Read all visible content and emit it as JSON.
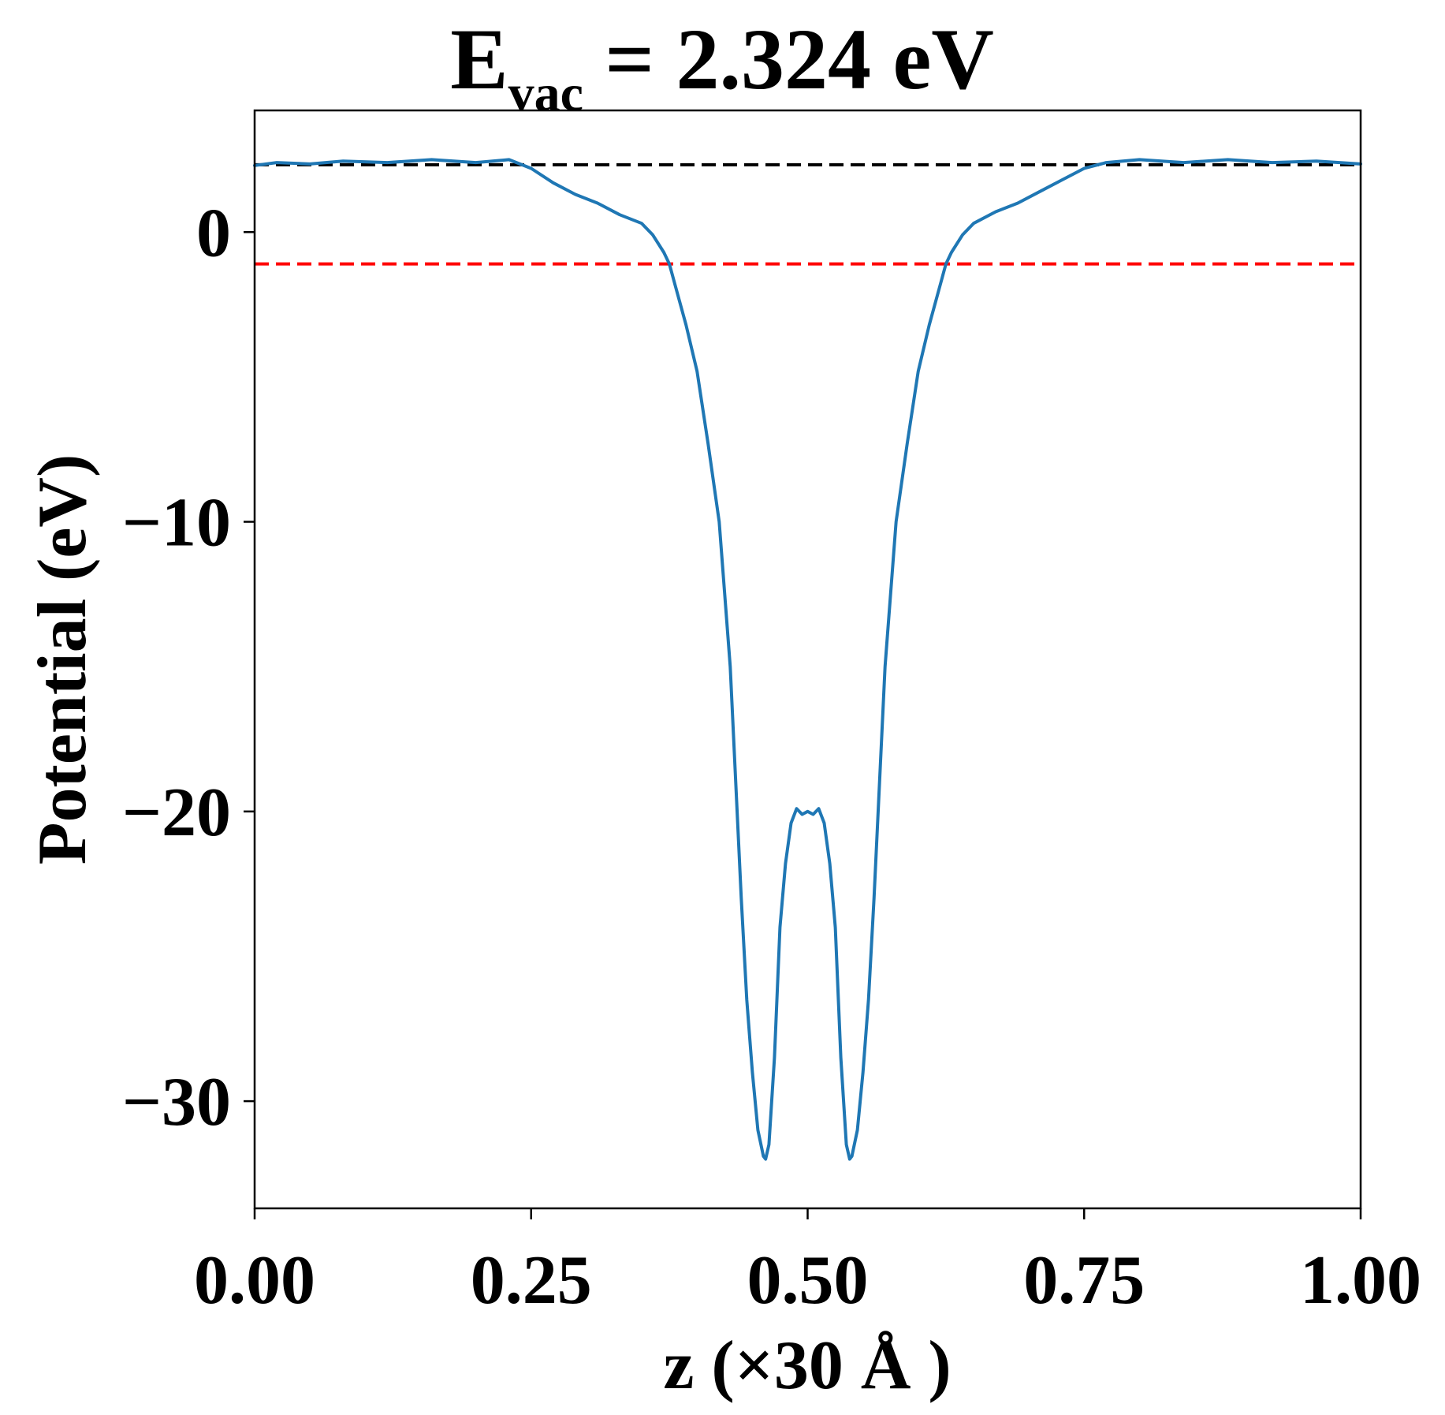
{
  "chart_data": {
    "type": "line",
    "title": {
      "prefix": "E",
      "subscript": "vac",
      "suffix": " = 2.324 eV"
    },
    "xlabel": "z (×30 Å )",
    "ylabel": "Potential (eV)",
    "xlim": [
      0.0,
      1.0
    ],
    "ylim": [
      -33.7,
      4.2
    ],
    "x_ticks": [
      {
        "value": 0.0,
        "label": "0.00"
      },
      {
        "value": 0.25,
        "label": "0.25"
      },
      {
        "value": 0.5,
        "label": "0.50"
      },
      {
        "value": 0.75,
        "label": "0.75"
      },
      {
        "value": 1.0,
        "label": "1.00"
      }
    ],
    "y_ticks": [
      {
        "value": 0,
        "label": "0"
      },
      {
        "value": -10,
        "label": "−10"
      },
      {
        "value": -20,
        "label": "−20"
      },
      {
        "value": -30,
        "label": "−30"
      }
    ],
    "grid": false,
    "legend": "none",
    "reference_lines": [
      {
        "kind": "horizontal",
        "y": 2.324,
        "color": "#000000",
        "style": "dashed"
      },
      {
        "kind": "horizontal",
        "y": -1.1,
        "color": "#ff0000",
        "style": "dashed"
      }
    ],
    "series": [
      {
        "color": "#1f77b4",
        "x": [
          0.0,
          0.02,
          0.05,
          0.08,
          0.12,
          0.16,
          0.2,
          0.23,
          0.25,
          0.27,
          0.29,
          0.31,
          0.33,
          0.35,
          0.36,
          0.37,
          0.375,
          0.38,
          0.39,
          0.4,
          0.41,
          0.42,
          0.425,
          0.43,
          0.435,
          0.44,
          0.445,
          0.45,
          0.455,
          0.46,
          0.462,
          0.465,
          0.47,
          0.475,
          0.48,
          0.485,
          0.49,
          0.495,
          0.5,
          0.505,
          0.51,
          0.515,
          0.52,
          0.525,
          0.53,
          0.535,
          0.538,
          0.54,
          0.545,
          0.55,
          0.555,
          0.56,
          0.565,
          0.57,
          0.575,
          0.58,
          0.59,
          0.6,
          0.61,
          0.62,
          0.625,
          0.63,
          0.64,
          0.65,
          0.67,
          0.69,
          0.71,
          0.73,
          0.75,
          0.77,
          0.8,
          0.84,
          0.88,
          0.92,
          0.96,
          1.0
        ],
        "values": [
          2.3,
          2.4,
          2.35,
          2.45,
          2.4,
          2.5,
          2.4,
          2.5,
          2.2,
          1.7,
          1.3,
          1.0,
          0.6,
          0.3,
          -0.1,
          -0.7,
          -1.1,
          -1.8,
          -3.2,
          -4.8,
          -7.3,
          -10.0,
          -12.5,
          -15.0,
          -19.0,
          -23.0,
          -26.5,
          -29.0,
          -31.0,
          -31.9,
          -32.0,
          -31.5,
          -28.5,
          -24.0,
          -21.8,
          -20.4,
          -19.9,
          -20.1,
          -20.0,
          -20.1,
          -19.9,
          -20.4,
          -21.8,
          -24.0,
          -28.5,
          -31.5,
          -32.0,
          -31.9,
          -31.0,
          -29.0,
          -26.5,
          -23.0,
          -19.0,
          -15.0,
          -12.5,
          -10.0,
          -7.3,
          -4.8,
          -3.2,
          -1.8,
          -1.1,
          -0.7,
          -0.1,
          0.3,
          0.7,
          1.0,
          1.4,
          1.8,
          2.2,
          2.4,
          2.5,
          2.4,
          2.5,
          2.4,
          2.45,
          2.35
        ]
      }
    ]
  }
}
